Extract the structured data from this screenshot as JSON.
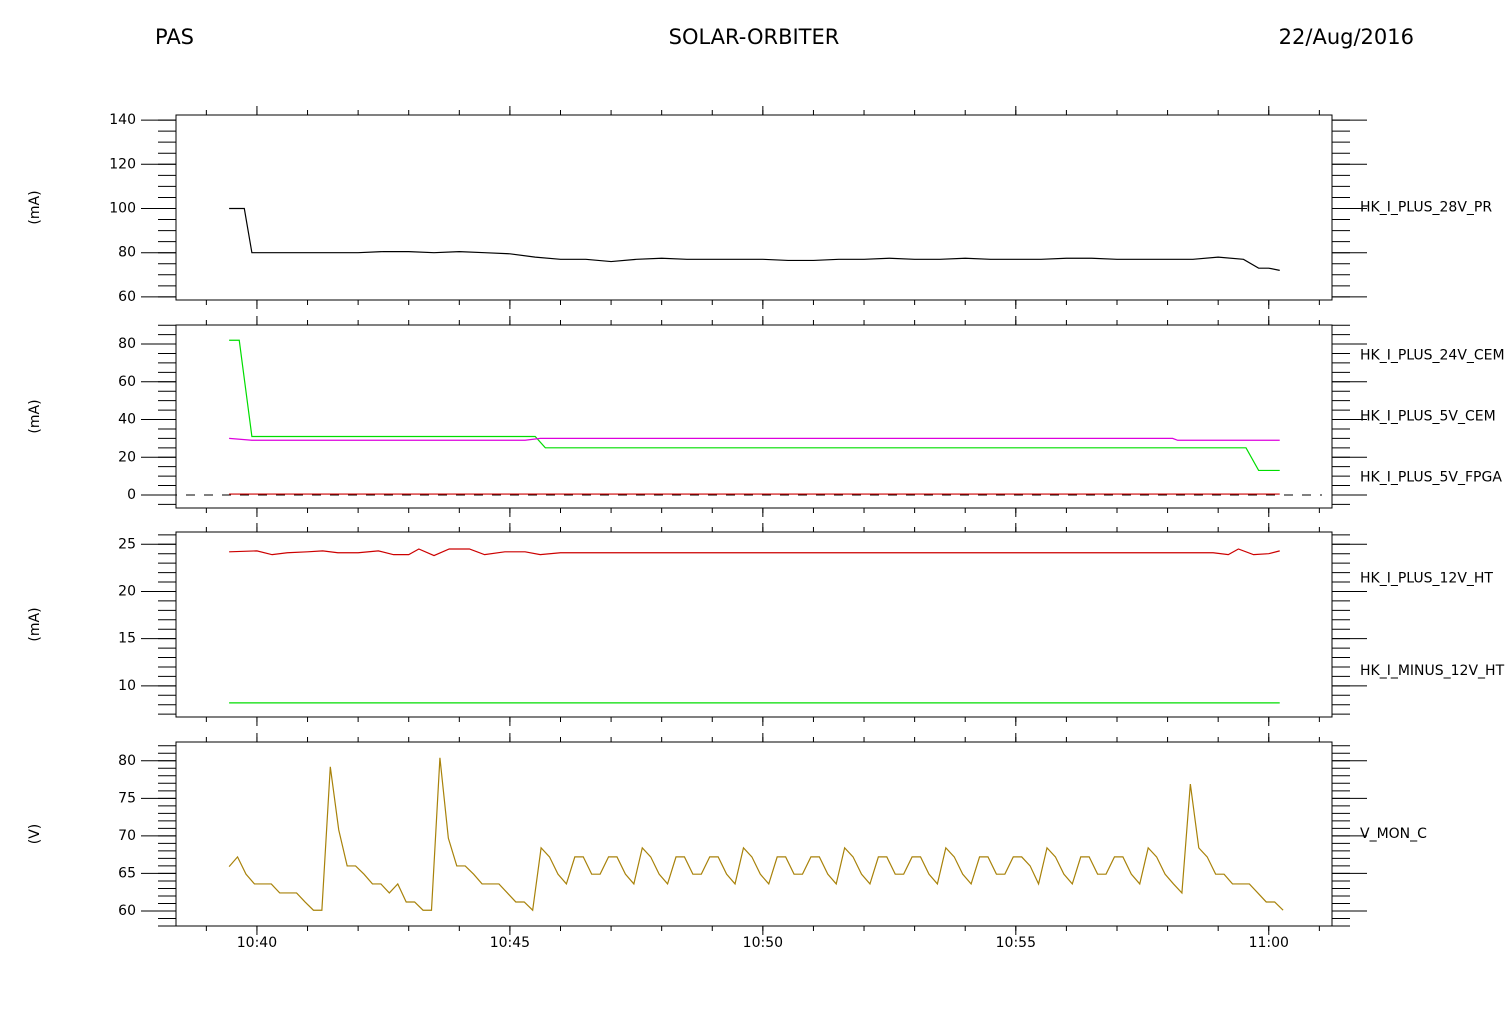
{
  "header": {
    "left": "PAS",
    "center": "SOLAR-ORBITER",
    "right": "22/Aug/2016"
  },
  "chart_data": [
    {
      "type": "line",
      "ylabel": "(mA)",
      "xlim": [
        2304,
        3675
      ],
      "xticks": [
        2400,
        2700,
        3000,
        3300,
        3600
      ],
      "ylim": [
        58.6,
        142.3
      ],
      "yticks": [
        60,
        80,
        100,
        120,
        140
      ],
      "series": [
        {
          "name": "HK_I_PLUS_28V_PR",
          "color": "#000000",
          "x": [
            2367,
            2385,
            2394,
            2430,
            2460,
            2490,
            2520,
            2550,
            2580,
            2610,
            2640,
            2670,
            2700,
            2730,
            2760,
            2790,
            2820,
            2850,
            2880,
            2910,
            2940,
            2970,
            3000,
            3030,
            3060,
            3090,
            3120,
            3150,
            3180,
            3210,
            3240,
            3270,
            3300,
            3330,
            3360,
            3390,
            3420,
            3450,
            3480,
            3510,
            3540,
            3570,
            3588,
            3600,
            3613
          ],
          "values": [
            100,
            100,
            80,
            80,
            80,
            80,
            80,
            80.5,
            80.5,
            80,
            80.5,
            80,
            79.5,
            78,
            77,
            77,
            76,
            77,
            77.5,
            77,
            77,
            77,
            77,
            76.5,
            76.5,
            77,
            77,
            77.5,
            77,
            77,
            77.5,
            77,
            77,
            77,
            77.5,
            77.5,
            77,
            77,
            77,
            77,
            78,
            77,
            73,
            73,
            72
          ]
        }
      ]
    },
    {
      "type": "line",
      "ylabel": "(mA)",
      "xlim": [
        2304,
        3675
      ],
      "xticks": [
        2400,
        2700,
        3000,
        3300,
        3600
      ],
      "ylim": [
        -6.9,
        90.1
      ],
      "yticks": [
        0,
        20,
        40,
        60,
        80
      ],
      "reference_line": 0,
      "series": [
        {
          "name": "HK_I_PLUS_24V_CEM",
          "color": "#cc0000",
          "x": [
            2367,
            3613
          ],
          "values": [
            0.5,
            0.5
          ]
        },
        {
          "name": "HK_I_PLUS_5V_CEM",
          "color": "#00dd00",
          "x": [
            2367,
            2379,
            2394,
            2730,
            2742,
            3573,
            3588,
            3613
          ],
          "values": [
            82,
            82,
            31,
            31,
            25,
            25,
            13,
            13
          ]
        },
        {
          "name": "HK_I_PLUS_5V_FPGA",
          "color": "#dd00dd",
          "x": [
            2367,
            2394,
            2718,
            2736,
            3486,
            3492,
            3613
          ],
          "values": [
            30,
            29,
            29,
            30,
            30,
            29,
            29
          ]
        }
      ]
    },
    {
      "type": "line",
      "ylabel": "(mA)",
      "xlim": [
        2304,
        3675
      ],
      "xticks": [
        2400,
        2700,
        3000,
        3300,
        3600
      ],
      "ylim": [
        6.7,
        26.3
      ],
      "yticks": [
        10,
        15,
        20,
        25
      ],
      "series": [
        {
          "name": "HK_I_PLUS_12V_HT",
          "color": "#cc0000",
          "x": [
            2367,
            2400,
            2418,
            2436,
            2460,
            2478,
            2496,
            2520,
            2544,
            2562,
            2580,
            2592,
            2610,
            2628,
            2652,
            2670,
            2694,
            2718,
            2736,
            2760,
            3534,
            3552,
            3564,
            3582,
            3600,
            3613
          ],
          "values": [
            24.2,
            24.3,
            23.9,
            24.1,
            24.2,
            24.3,
            24.1,
            24.1,
            24.3,
            23.9,
            23.9,
            24.5,
            23.8,
            24.5,
            24.5,
            23.9,
            24.2,
            24.2,
            23.9,
            24.1,
            24.1,
            23.9,
            24.5,
            23.9,
            24,
            24.3
          ]
        },
        {
          "name": "HK_I_MINUS_12V_HT",
          "color": "#00dd00",
          "x": [
            2367,
            3613
          ],
          "values": [
            8.2,
            8.2
          ]
        }
      ]
    },
    {
      "type": "line",
      "ylabel": "(V)",
      "xlim": [
        2304,
        3675
      ],
      "xticks": [
        {
          "value": 2400,
          "label": "10:40"
        },
        {
          "value": 2700,
          "label": "10:45"
        },
        {
          "value": 3000,
          "label": "10:50"
        },
        {
          "value": 3300,
          "label": "10:55"
        },
        {
          "value": 3600,
          "label": "11:00"
        }
      ],
      "ylim": [
        58,
        82.5
      ],
      "yticks": [
        60,
        65,
        70,
        75,
        80
      ],
      "series": [
        {
          "name": "V_MON_C",
          "color": "#a8820a",
          "x": [
            2367,
            2377,
            2387,
            2397,
            2407,
            2417,
            2427,
            2437,
            2447,
            2457,
            2467,
            2477,
            2487,
            2497,
            2507,
            2517,
            2527,
            2537,
            2547,
            2557,
            2567,
            2577,
            2587,
            2597,
            2607,
            2617,
            2627,
            2637,
            2647,
            2657,
            2667,
            2677,
            2687,
            2697,
            2707,
            2717,
            2727,
            2737,
            2747,
            2757,
            2767,
            2777,
            2787,
            2797,
            2807,
            2817,
            2827,
            2837,
            2847,
            2857,
            2867,
            2877,
            2887,
            2897,
            2907,
            2917,
            2927,
            2937,
            2947,
            2957,
            2967,
            2977,
            2987,
            2997,
            3007,
            3017,
            3027,
            3037,
            3047,
            3057,
            3067,
            3077,
            3087,
            3097,
            3107,
            3117,
            3127,
            3137,
            3147,
            3157,
            3167,
            3177,
            3187,
            3197,
            3207,
            3217,
            3227,
            3237,
            3247,
            3257,
            3267,
            3277,
            3287,
            3297,
            3307,
            3317,
            3327,
            3337,
            3347,
            3357,
            3367,
            3377,
            3387,
            3397,
            3407,
            3417,
            3427,
            3437,
            3447,
            3457,
            3467,
            3477,
            3487,
            3497,
            3507,
            3517,
            3527,
            3537,
            3547,
            3557,
            3567,
            3577,
            3587,
            3597,
            3607,
            3617
          ],
          "values": [
            65.9,
            67.2,
            64.9,
            63.6,
            63.6,
            63.6,
            62.4,
            62.4,
            62.4,
            61.2,
            60.1,
            60.1,
            79.2,
            70.8,
            66,
            66,
            64.9,
            63.6,
            63.6,
            62.4,
            63.6,
            61.2,
            61.2,
            60.1,
            60.1,
            80.4,
            69.7,
            66,
            66,
            64.9,
            63.6,
            63.6,
            63.6,
            62.4,
            61.2,
            61.2,
            60.1,
            68.4,
            67.2,
            64.9,
            63.6,
            67.2,
            67.2,
            64.9,
            64.9,
            67.2,
            67.2,
            64.9,
            63.6,
            68.4,
            67.2,
            64.9,
            63.6,
            67.2,
            67.2,
            64.9,
            64.9,
            67.2,
            67.2,
            64.9,
            63.6,
            68.4,
            67.2,
            64.9,
            63.6,
            67.2,
            67.2,
            64.9,
            64.9,
            67.2,
            67.2,
            64.9,
            63.6,
            68.4,
            67.2,
            64.9,
            63.6,
            67.2,
            67.2,
            64.9,
            64.9,
            67.2,
            67.2,
            64.9,
            63.6,
            68.4,
            67.2,
            64.9,
            63.6,
            67.2,
            67.2,
            64.9,
            64.9,
            67.2,
            67.2,
            66,
            63.6,
            68.4,
            67.2,
            64.9,
            63.6,
            67.2,
            67.2,
            64.9,
            64.9,
            67.2,
            67.2,
            64.9,
            63.6,
            68.4,
            67.2,
            64.9,
            63.6,
            62.4,
            76.9,
            68.4,
            67.2,
            64.9,
            64.9,
            63.6,
            63.6,
            63.6,
            62.4,
            61.2,
            61.2,
            60.1
          ]
        }
      ]
    }
  ]
}
